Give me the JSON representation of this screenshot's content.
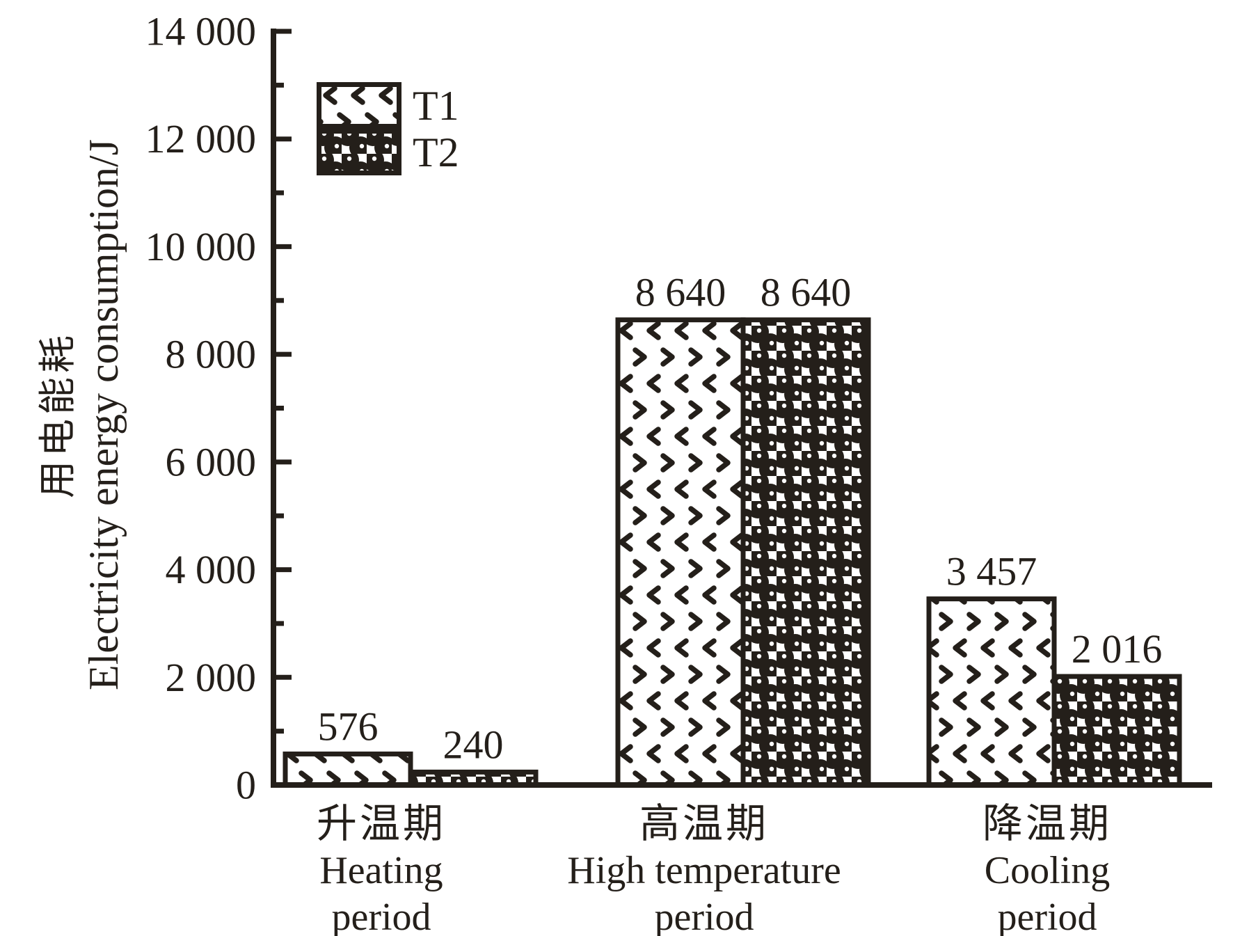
{
  "figure": {
    "ink_color": "#241f1a",
    "background": "#ffffff"
  },
  "chart_data": {
    "type": "bar",
    "title": "",
    "ylabel_zh": "用电能耗",
    "ylabel_en": "Electricity energy consumption/J",
    "xlabel": "",
    "ylim": [
      0,
      14000
    ],
    "grid": false,
    "legend_position": "upper-left-inside",
    "y_axis": {
      "major_step": 2000,
      "minor_step": 1000,
      "tick_labels": [
        "0",
        "2 000",
        "4 000",
        "6 000",
        "8 000",
        "10 000",
        "12 000",
        "14 000"
      ]
    },
    "categories": [
      {
        "zh": "升温期",
        "en_line1": "Heating",
        "en_line2": "period",
        "en": "Heating period"
      },
      {
        "zh": "高温期",
        "en_line1": "High temperature",
        "en_line2": "period",
        "en": "High temperature period"
      },
      {
        "zh": "降温期",
        "en_line1": "Cooling",
        "en_line2": "period",
        "en": "Cooling period"
      }
    ],
    "series": [
      {
        "name": "T1",
        "pattern": "chevron-speckle",
        "values": [
          576,
          8640,
          3457
        ],
        "value_labels": [
          "576",
          "8 640",
          "3 457"
        ]
      },
      {
        "name": "T2",
        "pattern": "dark-balls",
        "values": [
          240,
          8640,
          2016
        ],
        "value_labels": [
          "240",
          "8 640",
          "2 016"
        ]
      }
    ]
  }
}
